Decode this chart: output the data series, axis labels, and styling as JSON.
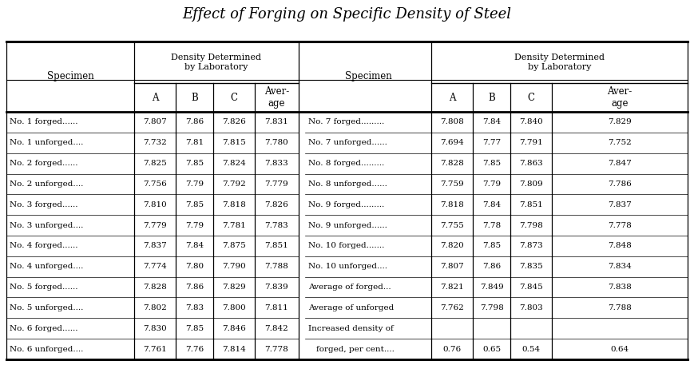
{
  "title": "Effect of Forging on Specific Density of Steel",
  "left_rows": [
    [
      "No. 1 forged......",
      "7.807",
      "7.86",
      "7.826",
      "7.831"
    ],
    [
      "No. 1 unforged....",
      "7.732",
      "7.81",
      "7.815",
      "7.780"
    ],
    [
      "No. 2 forged......",
      "7.825",
      "7.85",
      "7.824",
      "7.833"
    ],
    [
      "No. 2 unforged....",
      "7.756",
      "7.79",
      "7.792",
      "7.779"
    ],
    [
      "No. 3 forged......",
      "7.810",
      "7.85",
      "7.818",
      "7.826"
    ],
    [
      "No. 3 unforged....",
      "7.779",
      "7.79",
      "7.781",
      "7.783"
    ],
    [
      "No. 4 forged......",
      "7.837",
      "7.84",
      "7.875",
      "7.851"
    ],
    [
      "No. 4 unforged....",
      "7.774",
      "7.80",
      "7.790",
      "7.788"
    ],
    [
      "No. 5 forged......",
      "7.828",
      "7.86",
      "7.829",
      "7.839"
    ],
    [
      "No. 5 unforged....",
      "7.802",
      "7.83",
      "7.800",
      "7.811"
    ],
    [
      "No. 6 forged......",
      "7.830",
      "7.85",
      "7.846",
      "7.842"
    ],
    [
      "No. 6 unforged....",
      "7.761",
      "7.76",
      "7.814",
      "7.778"
    ]
  ],
  "right_rows": [
    [
      "No. 7 forged.........",
      "7.808",
      "7.84",
      "7.840",
      "7.829"
    ],
    [
      "No. 7 unforged......",
      "7.694",
      "7.77",
      "7.791",
      "7.752"
    ],
    [
      "No. 8 forged.........",
      "7.828",
      "7.85",
      "7.863",
      "7.847"
    ],
    [
      "No. 8 unforged......",
      "7.759",
      "7.79",
      "7.809",
      "7.786"
    ],
    [
      "No. 9 forged.........",
      "7.818",
      "7.84",
      "7.851",
      "7.837"
    ],
    [
      "No. 9 unforged......",
      "7.755",
      "7.78",
      "7.798",
      "7.778"
    ],
    [
      "No. 10 forged.......",
      "7.820",
      "7.85",
      "7.873",
      "7.848"
    ],
    [
      "No. 10 unforged....",
      "7.807",
      "7.86",
      "7.835",
      "7.834"
    ],
    [
      "Average of forged...",
      "7.821",
      "7.849",
      "7.845",
      "7.838"
    ],
    [
      "Average of unforged",
      "7.762",
      "7.798",
      "7.803",
      "7.788"
    ],
    [
      "Increased density of",
      "",
      "",
      "",
      ""
    ],
    [
      "  forged, per cent....",
      "0.76",
      "0.65",
      "0.54",
      "0.64"
    ]
  ],
  "bg_color": "#ffffff"
}
